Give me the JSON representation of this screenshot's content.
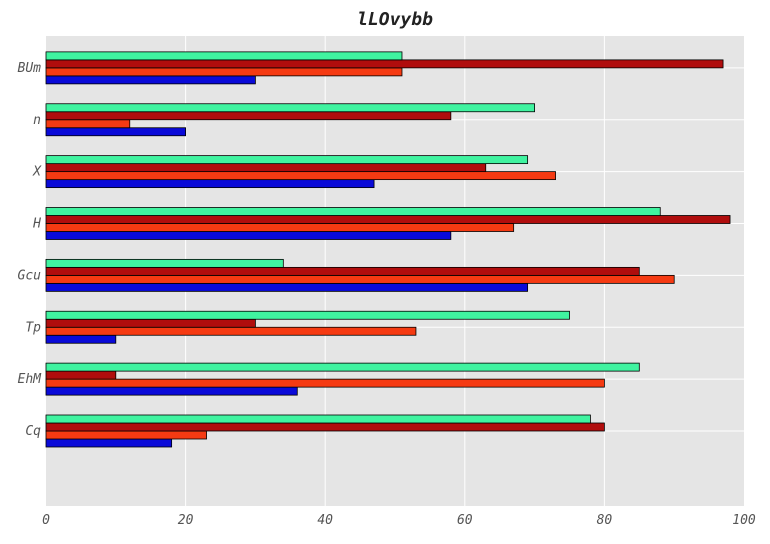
{
  "chart_data": {
    "type": "bar",
    "orientation": "horizontal",
    "title": "lLOvybb",
    "xlabel": "",
    "ylabel": "",
    "xlim": [
      0,
      100
    ],
    "x_ticks": [
      "0",
      "20",
      "40",
      "60",
      "80",
      "100"
    ],
    "x_tick_values": [
      0,
      20,
      40,
      60,
      80,
      100
    ],
    "grid": true,
    "legend": false,
    "background": "#e5e5e5",
    "categories": [
      "Cq",
      "EhM",
      "Tp",
      "Gcu",
      "H",
      "X",
      "n",
      "BUm"
    ],
    "series": [
      {
        "color": "#0a0ad8",
        "values": [
          18,
          36,
          10,
          69,
          58,
          47,
          20,
          30
        ]
      },
      {
        "color": "#f53a12",
        "values": [
          23,
          80,
          53,
          90,
          67,
          73,
          12,
          51
        ]
      },
      {
        "color": "#b00d0d",
        "values": [
          80,
          10,
          30,
          85,
          98,
          63,
          58,
          97
        ]
      },
      {
        "color": "#40f3a0",
        "values": [
          78,
          85,
          75,
          34,
          88,
          69,
          70,
          51
        ]
      }
    ]
  }
}
